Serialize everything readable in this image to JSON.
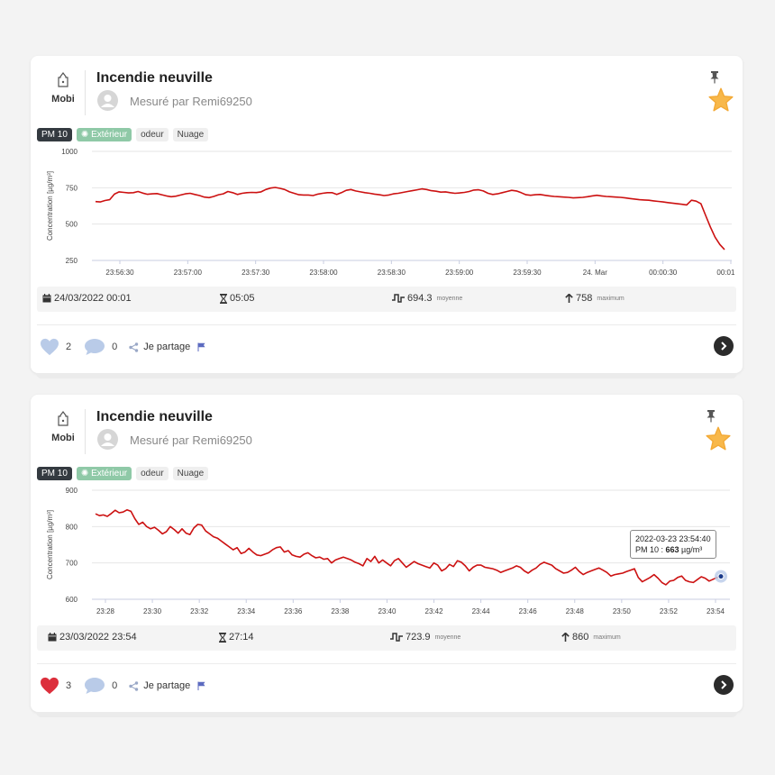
{
  "cards": [
    {
      "device": {
        "name": "Mobi",
        "icon": "device-icon"
      },
      "title": "Incendie neuville",
      "measured_by": "Mesuré par Remi69250",
      "pinned": true,
      "favorite": true,
      "tags": {
        "pollutant": "PM 10",
        "environment": "Extérieur",
        "tag1": "odeur",
        "tag2": "Nuage"
      },
      "stats": {
        "date": "24/03/2022 00:01",
        "duration": "05:05",
        "average": "694.3",
        "average_label": "moyenne",
        "maximum": "758",
        "maximum_label": "maximum"
      },
      "footer": {
        "likes": "2",
        "liked": false,
        "comments": "0",
        "share_label": "Je partage"
      },
      "chart_data": {
        "type": "line",
        "ylabel": "Concentration [µg/m³]",
        "ylim": [
          250,
          1000
        ],
        "yticks": [
          1000,
          750,
          500,
          250
        ],
        "xticks": [
          "23:56:30",
          "23:57:00",
          "23:57:30",
          "23:58:00",
          "23:58:30",
          "23:59:00",
          "23:59:30",
          "24. Mar",
          "00:00:30",
          "00:01:00"
        ],
        "line_color": "#cc1111",
        "grid": true,
        "series": [
          {
            "values": [
              655,
              652,
              662,
              668,
              706,
              722,
              718,
              714,
              716,
              724,
              713,
              705,
              708,
              710,
              702,
              694,
              688,
              692,
              700,
              708,
              712,
              704,
              696,
              686,
              682,
              690,
              702,
              708,
              724,
              716,
              704,
              712,
              716,
              718,
              717,
              722,
              738,
              748,
              752,
              746,
              738,
              722,
              712,
              702,
              700,
              700,
              696,
              706,
              712,
              716,
              716,
              704,
              716,
              732,
              738,
              728,
              722,
              716,
              712,
              706,
              702,
              696,
              700,
              708,
              712,
              718,
              724,
              730,
              736,
              742,
              738,
              730,
              726,
              720,
              722,
              716,
              712,
              714,
              718,
              724,
              734,
              736,
              728,
              712,
              704,
              708,
              716,
              724,
              732,
              728,
              716,
              702,
              698,
              702,
              704,
              698,
              694,
              690,
              688,
              686,
              684,
              680,
              682,
              684,
              688,
              694,
              698,
              694,
              690,
              688,
              686,
              684,
              680,
              676,
              672,
              668,
              666,
              664,
              660,
              656,
              652,
              648,
              644,
              640,
              636,
              632,
              664,
              658,
              640,
              560,
              480,
              410,
              360,
              325
            ]
          }
        ]
      }
    },
    {
      "device": {
        "name": "Mobi",
        "icon": "device-icon"
      },
      "title": "Incendie neuville",
      "measured_by": "Mesuré par Remi69250",
      "pinned": true,
      "favorite": true,
      "tags": {
        "pollutant": "PM 10",
        "environment": "Extérieur",
        "tag1": "odeur",
        "tag2": "Nuage"
      },
      "stats": {
        "date": "23/03/2022 23:54",
        "duration": "27:14",
        "average": "723.9",
        "average_label": "moyenne",
        "maximum": "860",
        "maximum_label": "maximum"
      },
      "footer": {
        "likes": "3",
        "liked": true,
        "comments": "0",
        "share_label": "Je partage"
      },
      "tooltip": {
        "time": "2022-03-23 23:54:40",
        "label": "PM 10 : ",
        "value": "663",
        "unit": " µg/m³"
      },
      "chart_data": {
        "type": "line",
        "ylabel": "Concentration [µg/m³]",
        "ylim": [
          600,
          900
        ],
        "yticks": [
          900,
          800,
          700,
          600
        ],
        "xticks": [
          "23:28",
          "23:30",
          "23:32",
          "23:34",
          "23:36",
          "23:38",
          "23:40",
          "23:42",
          "23:44",
          "23:46",
          "23:48",
          "23:50",
          "23:52",
          "23:54"
        ],
        "line_color": "#cc1111",
        "grid": true,
        "series": [
          {
            "values": [
              835,
              830,
              832,
              828,
              836,
              845,
              838,
              840,
              846,
              842,
              822,
              806,
              812,
              800,
              794,
              798,
              790,
              780,
              786,
              800,
              792,
              782,
              794,
              782,
              778,
              796,
              806,
              804,
              788,
              780,
              772,
              768,
              760,
              752,
              744,
              736,
              742,
              726,
              730,
              740,
              730,
              722,
              720,
              724,
              728,
              736,
              742,
              744,
              730,
              734,
              722,
              718,
              716,
              724,
              728,
              720,
              714,
              716,
              710,
              712,
              700,
              708,
              712,
              716,
              712,
              708,
              702,
              698,
              692,
              712,
              704,
              718,
              700,
              708,
              700,
              692,
              706,
              712,
              700,
              688,
              696,
              704,
              698,
              694,
              690,
              686,
              700,
              694,
              678,
              684,
              696,
              690,
              706,
              702,
              692,
              678,
              688,
              694,
              694,
              688,
              686,
              684,
              680,
              674,
              678,
              682,
              686,
              692,
              688,
              678,
              672,
              680,
              686,
              696,
              702,
              698,
              694,
              684,
              678,
              672,
              674,
              680,
              688,
              676,
              668,
              674,
              678,
              682,
              686,
              680,
              674,
              664,
              668,
              670,
              672,
              676,
              680,
              684,
              660,
              648,
              654,
              660,
              668,
              658,
              646,
              640,
              650,
              652,
              660,
              664,
              652,
              648,
              646,
              654,
              662,
              658,
              650,
              655,
              660,
              663
            ]
          }
        ]
      }
    }
  ]
}
